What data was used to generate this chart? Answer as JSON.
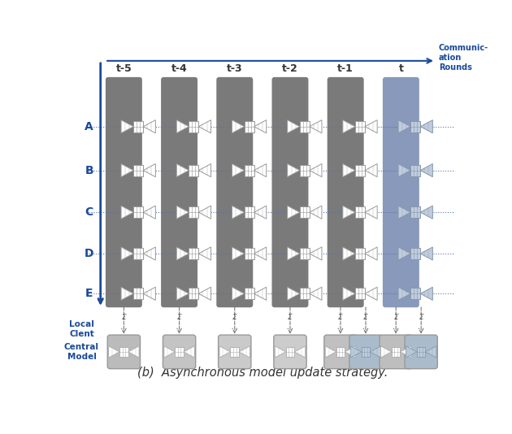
{
  "title": "(b)  Asynchronous model update strategy.",
  "comm_rounds_label": "Communic-\nation\nRounds",
  "time_labels": [
    "t-5",
    "t-4",
    "t-3",
    "t-2",
    "t-1",
    "t"
  ],
  "client_labels": [
    "A",
    "B",
    "C",
    "D",
    "E"
  ],
  "local_client_label": "Local\nClent",
  "central_model_label": "Central\nModel",
  "col_colors_gray": "#7A7A7A",
  "col_colors_blue": "#8899BB",
  "arrow_color": "#1A4A9A",
  "dotted_color": "#5577AA",
  "bg_color": "#FFFFFF",
  "figsize": [
    6.3,
    5.34
  ],
  "dpi": 100,
  "n_cols": 6,
  "n_clients": 5
}
